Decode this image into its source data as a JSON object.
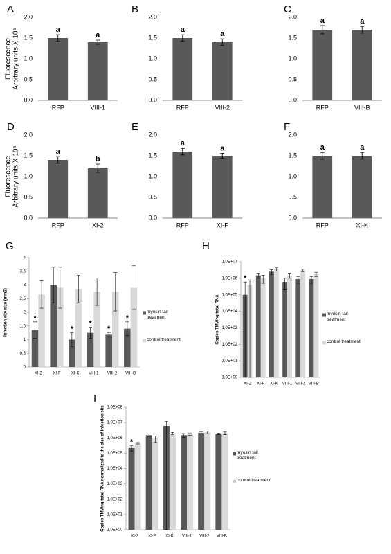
{
  "chart_data": [
    {
      "type": "bar",
      "panel_label": "A",
      "ylabel": [
        "Fluorescence",
        "Arbitrary units X 10⁵"
      ],
      "categories": [
        "RFP",
        "VIII-1"
      ],
      "values": [
        1.5,
        1.4
      ],
      "errors": [
        0.08,
        0.05
      ],
      "annotations": [
        "a",
        "a"
      ],
      "color": "#595959",
      "ylim": [
        0,
        2
      ],
      "yticks": [
        {
          "value": 0,
          "label": "0.0"
        },
        0.5,
        {
          "value": 1,
          "label": "1.0"
        },
        1.5,
        {
          "value": 2,
          "label": "2.0"
        }
      ]
    },
    {
      "type": "bar",
      "panel_label": "B",
      "categories": [
        "RFP",
        "VIII-2"
      ],
      "values": [
        1.5,
        1.4
      ],
      "errors": [
        0.08,
        0.08
      ],
      "annotations": [
        "a",
        "a"
      ],
      "color": "#595959",
      "ylim": [
        0,
        2
      ],
      "yticks": [
        {
          "value": 0,
          "label": "0.0"
        },
        0.5,
        {
          "value": 1,
          "label": "1.0"
        },
        1.5,
        {
          "value": 2,
          "label": "2.0"
        }
      ]
    },
    {
      "type": "bar",
      "panel_label": "C",
      "categories": [
        "RFP",
        "VIII-B"
      ],
      "values": [
        1.7,
        1.7
      ],
      "errors": [
        0.1,
        0.08
      ],
      "annotations": [
        "a",
        "a"
      ],
      "color": "#595959",
      "ylim": [
        0,
        2
      ],
      "yticks": [
        {
          "value": 0,
          "label": "0.0"
        },
        0.5,
        {
          "value": 1,
          "label": "1.0"
        },
        1.5,
        {
          "value": 2,
          "label": "2.0"
        }
      ]
    },
    {
      "type": "bar",
      "panel_label": "D",
      "ylabel": [
        "Fluorescence",
        "Arbitrary units X 10⁵"
      ],
      "categories": [
        "RFP",
        "XI-2"
      ],
      "values": [
        1.4,
        1.2
      ],
      "errors": [
        0.08,
        0.1
      ],
      "annotations": [
        "a",
        "b"
      ],
      "color": "#595959",
      "ylim": [
        0,
        2
      ],
      "yticks": [
        {
          "value": 0,
          "label": "0.0"
        },
        0.5,
        {
          "value": 1,
          "label": "1.0"
        },
        1.5,
        {
          "value": 2,
          "label": "2.0"
        }
      ]
    },
    {
      "type": "bar",
      "panel_label": "E",
      "categories": [
        "RFP",
        "XI-F"
      ],
      "values": [
        1.6,
        1.5
      ],
      "errors": [
        0.08,
        0.06
      ],
      "annotations": [
        "a",
        "a"
      ],
      "color": "#595959",
      "ylim": [
        0,
        2
      ],
      "yticks": [
        {
          "value": 0,
          "label": "0.0"
        },
        0.5,
        {
          "value": 1,
          "label": "1.0"
        },
        1.5,
        {
          "value": 2,
          "label": "2.0"
        }
      ]
    },
    {
      "type": "bar",
      "panel_label": "F",
      "categories": [
        "RFP",
        "XI-K"
      ],
      "values": [
        1.5,
        1.5
      ],
      "errors": [
        0.08,
        0.08
      ],
      "annotations": [
        "a",
        "a"
      ],
      "color": "#595959",
      "ylim": [
        0,
        2
      ],
      "yticks": [
        {
          "value": 0,
          "label": "0.0"
        },
        0.5,
        {
          "value": 1,
          "label": "1.0"
        },
        1.5,
        {
          "value": 2,
          "label": "2.0"
        }
      ]
    },
    {
      "type": "grouped_bar",
      "panel_label": "G",
      "ylabel": [
        "Infection site size (mm2)"
      ],
      "categories": [
        "XI-2",
        "XI-F",
        "XI-K",
        "VIII-1",
        "VIII-2",
        "VIII-B"
      ],
      "legend": "right",
      "series": [
        {
          "name": "myosin tail treatment",
          "color": "#595959",
          "values": [
            1.35,
            3.0,
            1.0,
            1.25,
            1.18,
            1.4
          ],
          "errors": [
            0.3,
            0.65,
            0.25,
            0.2,
            0.08,
            0.25
          ]
        },
        {
          "name": "control treatment",
          "color": "#d9d9d9",
          "values": [
            2.65,
            2.9,
            2.85,
            2.75,
            2.75,
            2.9
          ],
          "errors": [
            0.5,
            0.75,
            0.5,
            0.5,
            0.7,
            0.8
          ]
        }
      ],
      "annotations": [
        "*",
        null,
        "*",
        "*",
        "*",
        "*"
      ],
      "ylim": [
        0,
        4
      ],
      "yticks": [
        0,
        {
          "value": 0.5,
          "label": "0,5"
        },
        1,
        {
          "value": 1.5,
          "label": "1,5"
        },
        2,
        {
          "value": 2.5,
          "label": "2,5"
        },
        3,
        {
          "value": 3.5,
          "label": "3,5"
        },
        4
      ]
    },
    {
      "type": "grouped_bar",
      "panel_label": "H",
      "ylabel": [
        "Copies TMV/ng total RNA"
      ],
      "categories": [
        "XI-2",
        "XI-F",
        "XI-K",
        "VIII-1",
        "VIII-2",
        "VIII-B"
      ],
      "legend": "right",
      "log_scale": true,
      "series": [
        {
          "name": "myosin tail treatment",
          "color": "#595959",
          "values": [
            100000,
            1500000,
            2500000,
            600000,
            900000,
            900000
          ],
          "errors": [
            500000,
            500000,
            800000,
            400000,
            400000,
            400000
          ]
        },
        {
          "name": "control treatment",
          "color": "#d9d9d9",
          "values": [
            400000,
            1000000,
            3500000,
            1500000,
            3000000,
            1800000
          ],
          "errors": [
            400000,
            500000,
            800000,
            500000,
            500000,
            500000
          ]
        }
      ],
      "annotations": [
        "*",
        null,
        null,
        null,
        null,
        null
      ],
      "ylim": [
        1,
        10000000
      ],
      "yticks": [
        {
          "value": 1,
          "label": "1,0E+00"
        },
        {
          "value": 10,
          "label": "1,0E+01"
        },
        {
          "value": 100,
          "label": "1,0E+02"
        },
        {
          "value": 1000,
          "label": "1,0E+03"
        },
        {
          "value": 10000,
          "label": "1,0E+04"
        },
        {
          "value": 100000,
          "label": "1,0E+05"
        },
        {
          "value": 1000000,
          "label": "1,0E+06"
        },
        {
          "value": 10000000,
          "label": "1,0E+07"
        }
      ]
    },
    {
      "type": "grouped_bar",
      "panel_label": "I",
      "ylabel": [
        "Copies TMV/ng total RNA normalized to the size of infection site"
      ],
      "categories": [
        "XI-2",
        "XI-F",
        "XI-K",
        "VIII-1",
        "VIII-2",
        "VIII-B"
      ],
      "legend": "right",
      "log_scale": true,
      "series": [
        {
          "name": "myosin tail treatment",
          "color": "#595959",
          "values": [
            220000,
            1500000,
            6000000,
            1500000,
            2100000,
            1800000
          ],
          "errors": [
            80000,
            300000,
            6000000,
            400000,
            300000,
            200000
          ]
        },
        {
          "name": "control treatment",
          "color": "#d9d9d9",
          "values": [
            450000,
            900000,
            2000000,
            1800000,
            2300000,
            2000000
          ],
          "errors": [
            50000,
            400000,
            300000,
            300000,
            500000,
            400000
          ]
        }
      ],
      "annotations": [
        "*",
        null,
        null,
        null,
        null,
        null
      ],
      "ylim": [
        1,
        100000000
      ],
      "yticks": [
        {
          "value": 1,
          "label": "1,0E+00"
        },
        {
          "value": 10,
          "label": "1,0E+01"
        },
        {
          "value": 100,
          "label": "1,0E+02"
        },
        {
          "value": 1000,
          "label": "1,0E+03"
        },
        {
          "value": 10000,
          "label": "1,0E+04"
        },
        {
          "value": 100000,
          "label": "1,0E+05"
        },
        {
          "value": 1000000,
          "label": "1,0E+06"
        },
        {
          "value": 10000000,
          "label": "1,0E+07"
        },
        {
          "value": 100000000,
          "label": "1,0E+08"
        }
      ]
    }
  ]
}
